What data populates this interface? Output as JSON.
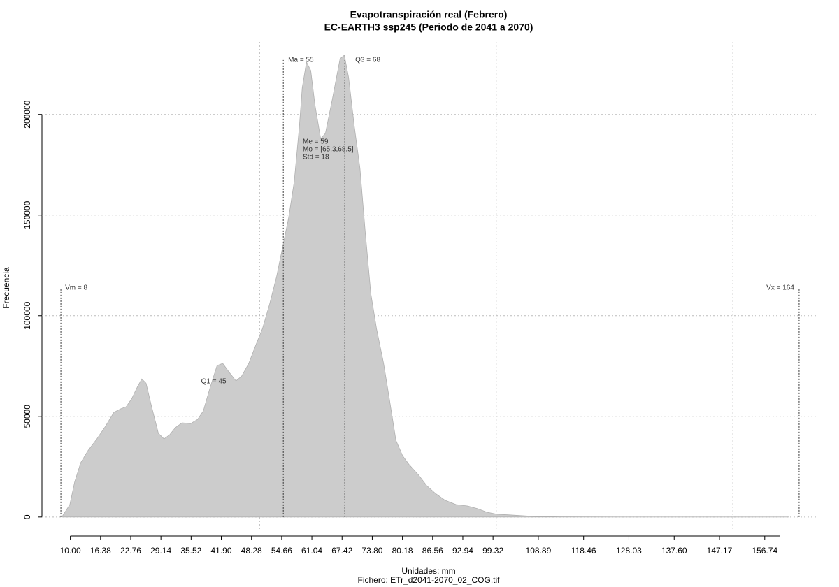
{
  "chart_data": {
    "type": "area",
    "title": "Evapotranspiración real (Febrero)",
    "subtitle": "EC-EARTH3 ssp245 (Periodo de 2041 a 2070)",
    "x_label": "Unidades: mm",
    "file_label": "Fichero: ETr_d2041-2070_02_COG.tif",
    "y_label": "Frecuencia",
    "color": "#cccccc",
    "x": [
      8.2,
      9.9,
      10.9,
      12.2,
      13.7,
      15.6,
      17.4,
      19.2,
      20.6,
      21.8,
      23.0,
      24.2,
      25.1,
      26.0,
      27.1,
      28.6,
      29.8,
      31.0,
      32.2,
      33.6,
      35.4,
      36.9,
      38.1,
      39.5,
      41.0,
      42.2,
      43.5,
      45.0,
      46.2,
      47.7,
      49.1,
      50.6,
      52.1,
      53.6,
      55.1,
      56.1,
      57.3,
      58.4,
      59.0,
      59.9,
      60.8,
      61.7,
      62.9,
      63.9,
      65.4,
      66.1,
      67.0,
      67.9,
      68.8,
      70.0,
      71.2,
      72.3,
      73.5,
      74.7,
      76.2,
      77.4,
      78.8,
      80.2,
      81.6,
      83.6,
      85.3,
      87.1,
      89.2,
      91.5,
      93.9,
      96.0,
      98.0,
      100.1,
      103.1,
      107.5,
      113.4,
      128.2,
      161.8
    ],
    "values": [
      0,
      6200,
      17300,
      27000,
      32900,
      38800,
      45000,
      52000,
      53700,
      54800,
      58900,
      64800,
      68600,
      66500,
      55500,
      41600,
      38800,
      40900,
      44400,
      46800,
      46400,
      48500,
      52700,
      64100,
      75200,
      76300,
      72100,
      67600,
      70000,
      76300,
      84900,
      93600,
      105700,
      119600,
      136900,
      148300,
      166400,
      194100,
      213200,
      226000,
      221800,
      204500,
      187900,
      190600,
      208000,
      216600,
      227700,
      229400,
      218400,
      194100,
      173300,
      142100,
      110900,
      93600,
      76300,
      58900,
      38100,
      30500,
      26000,
      20800,
      15600,
      11800,
      8300,
      6200,
      5500,
      4200,
      2400,
      1400,
      1000,
      350,
      100,
      0,
      0
    ],
    "xlim": [
      4,
      168
    ],
    "ylim": [
      -7000,
      236000
    ],
    "xticks": [
      {
        "value": 10,
        "label": "10.00"
      },
      16.38,
      22.76,
      29.14,
      35.52,
      {
        "value": 41.9,
        "label": "41.90"
      },
      48.28,
      54.66,
      61.04,
      67.42,
      {
        "value": 73.8,
        "label": "73.80"
      },
      80.18,
      86.56,
      92.94,
      99.32,
      108.89,
      118.46,
      128.03,
      {
        "value": 137.6,
        "label": "137.60"
      },
      147.17,
      156.74
    ],
    "yticks": [
      0,
      50000,
      100000,
      150000,
      200000
    ],
    "xgrid": [
      50,
      100,
      150
    ],
    "grid": true,
    "stats": [
      {
        "label": "Vm = 8",
        "value": 8
      },
      {
        "label": "Vx = 164",
        "value": 164
      },
      {
        "label": "Q1 = 45",
        "value": 45
      },
      {
        "label": "Ma = 55",
        "value": 55
      },
      {
        "label": "Q3 = 68",
        "value": 68
      }
    ],
    "summary": [
      "Me = 59",
      "Mo = [65.3,68.5]",
      "Std = 18"
    ]
  }
}
